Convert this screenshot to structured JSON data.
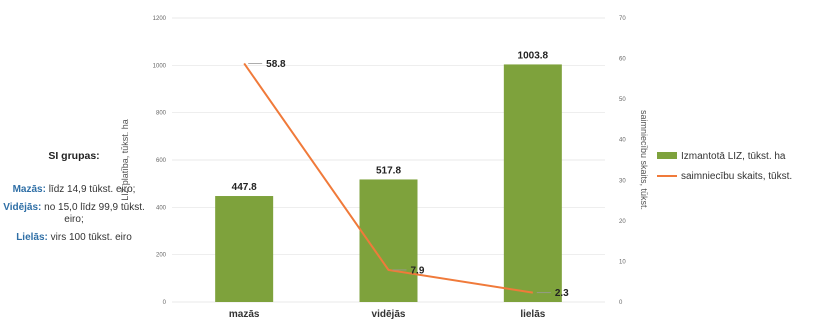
{
  "side_panel": {
    "title": "SI grupas:",
    "groups": [
      {
        "name": "Mazās:",
        "desc": "līdz 14,9 tūkst. eiro;"
      },
      {
        "name": "Vidējās:",
        "desc": "no 15,0 līdz 99,9 tūkst. eiro;"
      },
      {
        "name": "Lielās:",
        "desc": "virs 100 tūkst. eiro"
      }
    ]
  },
  "chart_data": {
    "type": "bar",
    "categories": [
      "mazās",
      "vidējās",
      "lielās"
    ],
    "series": [
      {
        "name": "Izmantotā LIZ, tūkst. ha",
        "type": "bar",
        "axis": "left",
        "color": "#7ea23c",
        "values": [
          447.8,
          517.8,
          1003.8
        ],
        "labels": [
          "447.8",
          "517.8",
          "1003.8"
        ]
      },
      {
        "name": "saimniecību skaits, tūkst.",
        "type": "line",
        "axis": "right",
        "color": "#f07a3a",
        "values": [
          58.8,
          7.9,
          2.3
        ],
        "labels": [
          "58.8",
          "7.9",
          "2.3"
        ]
      }
    ],
    "ylabel": "LIZ platība, tūkst. ha",
    "y2label": "saimniecību skaits, tūkst.",
    "ylim": [
      0,
      1200
    ],
    "y2lim": [
      0,
      70
    ],
    "yticks": [
      "0",
      "200",
      "400",
      "600",
      "800",
      "1000",
      "1200"
    ],
    "y2ticks": [
      "0",
      "10",
      "20",
      "30",
      "40",
      "50",
      "60",
      "70"
    ],
    "grid": true,
    "legend": "right"
  }
}
